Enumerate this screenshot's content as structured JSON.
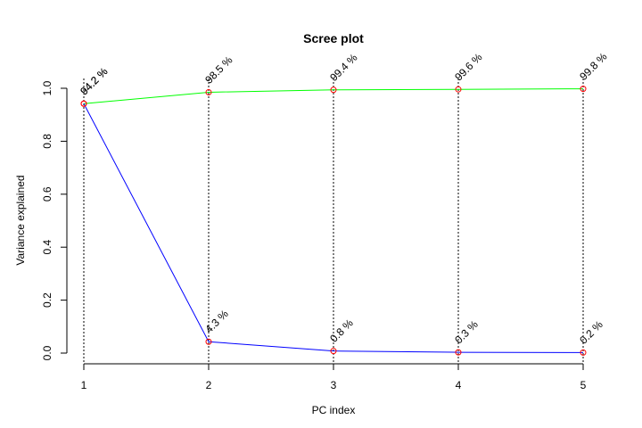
{
  "chart_data": {
    "type": "line",
    "title": "Scree plot",
    "xlabel": "PC index",
    "ylabel": "Variance explained",
    "x": [
      1,
      2,
      3,
      4,
      5
    ],
    "xlim": [
      1,
      5
    ],
    "ylim": [
      0,
      1
    ],
    "yticks": [
      0.0,
      0.2,
      0.4,
      0.6,
      0.8,
      1.0
    ],
    "ytick_labels": [
      "0.0",
      "0.2",
      "0.4",
      "0.6",
      "0.8",
      "1.0"
    ],
    "grid": false,
    "series": [
      {
        "values": [
          0.942,
          0.985,
          0.994,
          0.996,
          0.998
        ],
        "labels": [
          "94.2 %",
          "98.5 %",
          "99.4 %",
          "99.6 %",
          "99.8 %"
        ],
        "line_color": "#00ff00"
      },
      {
        "values": [
          0.942,
          0.043,
          0.008,
          0.003,
          0.002
        ],
        "labels": [
          "94.2 %",
          "4.3 %",
          "0.8 %",
          "0.3 %",
          "0.2 %"
        ],
        "line_color": "#0000ff"
      }
    ],
    "marker_color": "#ff0000",
    "vertical_lines": "dotted"
  }
}
